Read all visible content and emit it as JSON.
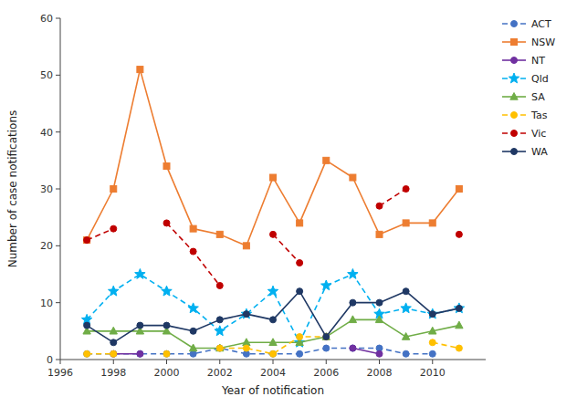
{
  "chart_data": {
    "type": "line",
    "x": [
      1997,
      1998,
      1999,
      2000,
      2001,
      2002,
      2003,
      2004,
      2005,
      2006,
      2007,
      2008,
      2009,
      2010,
      2011
    ],
    "series": [
      {
        "name": "ACT",
        "color": "#4472c4",
        "line_style": "dashed",
        "marker": "circle",
        "values": [
          1,
          1,
          1,
          1,
          1,
          2,
          1,
          1,
          1,
          2,
          2,
          2,
          1,
          1,
          null
        ]
      },
      {
        "name": "NSW",
        "color": "#ed7d31",
        "line_style": "solid",
        "marker": "square",
        "values": [
          21,
          30,
          51,
          34,
          23,
          22,
          20,
          32,
          24,
          35,
          32,
          22,
          24,
          24,
          30
        ]
      },
      {
        "name": "NT",
        "color": "#7030a0",
        "line_style": "solid",
        "marker": "circle",
        "values": [
          null,
          1,
          1,
          null,
          null,
          null,
          null,
          null,
          null,
          null,
          2,
          1,
          null,
          null,
          null
        ]
      },
      {
        "name": "Qld",
        "color": "#00b0f0",
        "line_style": "dashed",
        "marker": "star",
        "values": [
          7,
          12,
          15,
          12,
          9,
          5,
          8,
          12,
          3,
          13,
          15,
          8,
          9,
          8,
          9
        ]
      },
      {
        "name": "SA",
        "color": "#70ad47",
        "line_style": "solid",
        "marker": "triangle",
        "values": [
          5,
          5,
          5,
          5,
          2,
          2,
          3,
          3,
          3,
          4,
          7,
          7,
          4,
          5,
          6
        ]
      },
      {
        "name": "Tas",
        "color": "#ffc000",
        "line_style": "dashed",
        "marker": "circle",
        "values": [
          1,
          1,
          null,
          1,
          null,
          2,
          2,
          1,
          4,
          4,
          null,
          null,
          null,
          3,
          2
        ]
      },
      {
        "name": "Vic",
        "color": "#c00000",
        "line_style": "dashed",
        "marker": "circle",
        "values": [
          21,
          23,
          null,
          24,
          19,
          13,
          null,
          22,
          17,
          null,
          null,
          27,
          30,
          null,
          22
        ]
      },
      {
        "name": "WA",
        "color": "#1f3864",
        "line_style": "solid",
        "marker": "circle",
        "values": [
          6,
          3,
          6,
          6,
          5,
          7,
          8,
          7,
          12,
          4,
          10,
          10,
          12,
          8,
          9
        ]
      }
    ],
    "xlabel": "Year of notification",
    "ylabel": "Number of case notifications",
    "xlim": [
      1996,
      2012
    ],
    "ylim": [
      0,
      60
    ],
    "xticks": [
      1996,
      1998,
      2000,
      2002,
      2004,
      2006,
      2008,
      2010
    ],
    "yticks": [
      0,
      10,
      20,
      30,
      40,
      50,
      60
    ],
    "grid": false,
    "legend": "right"
  }
}
